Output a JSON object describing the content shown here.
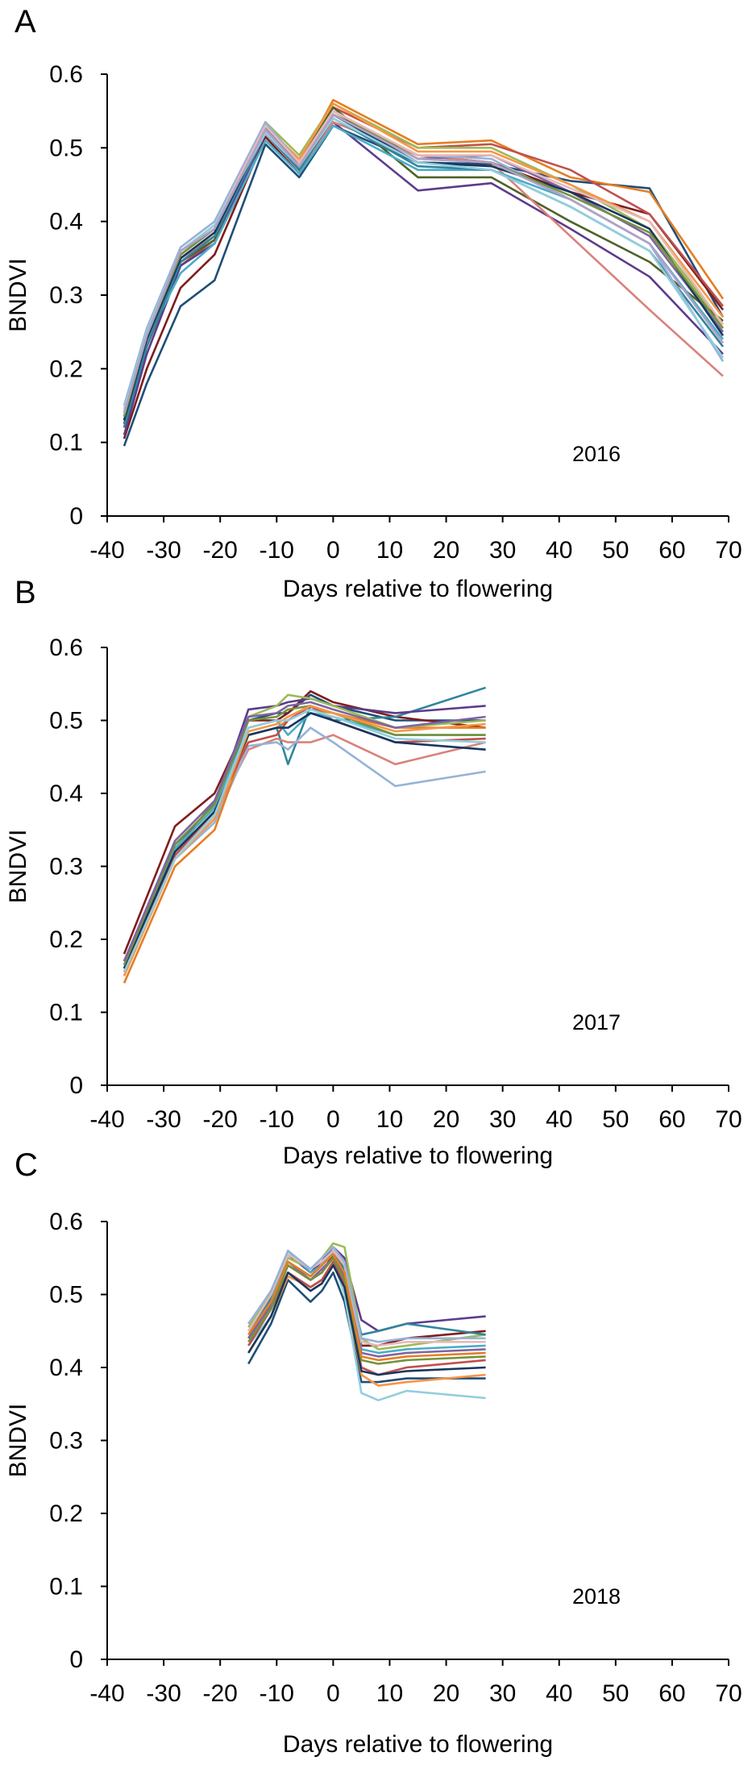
{
  "chart_data": [
    {
      "type": "line",
      "panel": "A",
      "year": "2016",
      "xlabel": "Days relative to flowering",
      "ylabel": "BNDVI",
      "xlim": [
        -40,
        70
      ],
      "ylim": [
        0,
        0.6
      ],
      "xticks": [
        "-40",
        "-30",
        "-20",
        "-10",
        "0",
        "10",
        "20",
        "30",
        "40",
        "50",
        "60",
        "70"
      ],
      "yticks": [
        "0",
        "0.1",
        "0.2",
        "0.3",
        "0.4",
        "0.5",
        "0.6"
      ],
      "x": [
        -37,
        -33,
        -27,
        -21,
        -12,
        -6,
        0,
        15,
        28,
        42,
        56,
        69
      ],
      "series": [
        {
          "color": "#1f4e79",
          "values": [
            0.095,
            0.18,
            0.285,
            0.32,
            0.505,
            0.46,
            0.53,
            0.48,
            0.478,
            0.455,
            0.445,
            0.27
          ]
        },
        {
          "color": "#7f1d1d",
          "values": [
            0.105,
            0.2,
            0.31,
            0.355,
            0.515,
            0.465,
            0.545,
            0.49,
            0.48,
            0.44,
            0.41,
            0.28
          ]
        },
        {
          "color": "#e67e22",
          "values": [
            0.14,
            0.23,
            0.345,
            0.38,
            0.535,
            0.48,
            0.565,
            0.505,
            0.51,
            0.46,
            0.44,
            0.295
          ]
        },
        {
          "color": "#c0504d",
          "values": [
            0.12,
            0.23,
            0.34,
            0.375,
            0.53,
            0.47,
            0.555,
            0.5,
            0.505,
            0.47,
            0.41,
            0.285
          ]
        },
        {
          "color": "#9bbb59",
          "values": [
            0.13,
            0.24,
            0.35,
            0.38,
            0.535,
            0.49,
            0.56,
            0.5,
            0.5,
            0.45,
            0.39,
            0.26
          ]
        },
        {
          "color": "#4f6228",
          "values": [
            0.125,
            0.235,
            0.345,
            0.375,
            0.525,
            0.48,
            0.555,
            0.46,
            0.46,
            0.4,
            0.345,
            0.265
          ]
        },
        {
          "color": "#5c3c8a",
          "values": [
            0.11,
            0.22,
            0.34,
            0.37,
            0.52,
            0.47,
            0.535,
            0.442,
            0.452,
            0.39,
            0.325,
            0.22
          ]
        },
        {
          "color": "#d9827b",
          "values": [
            0.13,
            0.235,
            0.35,
            0.38,
            0.52,
            0.47,
            0.535,
            0.49,
            0.48,
            0.38,
            0.28,
            0.19
          ]
        },
        {
          "color": "#4bacc6",
          "values": [
            0.135,
            0.24,
            0.33,
            0.37,
            0.51,
            0.465,
            0.53,
            0.47,
            0.47,
            0.43,
            0.37,
            0.24
          ]
        },
        {
          "color": "#8064a2",
          "values": [
            0.14,
            0.245,
            0.355,
            0.39,
            0.53,
            0.475,
            0.545,
            0.485,
            0.49,
            0.44,
            0.38,
            0.25
          ]
        },
        {
          "color": "#31859c",
          "values": [
            0.12,
            0.23,
            0.345,
            0.38,
            0.52,
            0.47,
            0.54,
            0.475,
            0.47,
            0.42,
            0.36,
            0.23
          ]
        },
        {
          "color": "#f79646",
          "values": [
            0.145,
            0.25,
            0.36,
            0.39,
            0.53,
            0.485,
            0.56,
            0.495,
            0.495,
            0.45,
            0.4,
            0.27
          ]
        },
        {
          "color": "#95b3d7",
          "values": [
            0.15,
            0.255,
            0.365,
            0.4,
            0.535,
            0.48,
            0.55,
            0.49,
            0.485,
            0.43,
            0.37,
            0.21
          ]
        },
        {
          "color": "#17375e",
          "values": [
            0.13,
            0.24,
            0.35,
            0.385,
            0.525,
            0.475,
            0.545,
            0.48,
            0.475,
            0.44,
            0.39,
            0.245
          ]
        },
        {
          "color": "#76923c",
          "values": [
            0.135,
            0.245,
            0.355,
            0.39,
            0.53,
            0.48,
            0.55,
            0.485,
            0.48,
            0.435,
            0.385,
            0.255
          ]
        },
        {
          "color": "#e6b9b8",
          "values": [
            0.14,
            0.25,
            0.36,
            0.395,
            0.53,
            0.48,
            0.55,
            0.49,
            0.49,
            0.445,
            0.4,
            0.26
          ]
        },
        {
          "color": "#93cddd",
          "values": [
            0.145,
            0.25,
            0.36,
            0.395,
            0.52,
            0.475,
            0.54,
            0.48,
            0.47,
            0.42,
            0.36,
            0.215
          ]
        },
        {
          "color": "#b1a0c7",
          "values": [
            0.14,
            0.245,
            0.36,
            0.39,
            0.525,
            0.475,
            0.545,
            0.485,
            0.48,
            0.43,
            0.37,
            0.235
          ]
        }
      ],
      "annotation": "2016"
    },
    {
      "type": "line",
      "panel": "B",
      "year": "2017",
      "xlabel": "Days relative to flowering",
      "ylabel": "BNDVI",
      "xlim": [
        -40,
        70
      ],
      "ylim": [
        0,
        0.6
      ],
      "xticks": [
        "-40",
        "-30",
        "-20",
        "-10",
        "0",
        "10",
        "20",
        "30",
        "40",
        "50",
        "60",
        "70"
      ],
      "yticks": [
        "0",
        "0.1",
        "0.2",
        "0.3",
        "0.4",
        "0.5",
        "0.6"
      ],
      "x": [
        -37,
        -28,
        -21,
        -15,
        -10,
        -8,
        -4,
        0,
        11,
        27
      ],
      "series": [
        {
          "color": "#1f4e79",
          "values": [
            0.16,
            0.33,
            0.38,
            0.5,
            0.51,
            0.51,
            0.535,
            0.52,
            0.5,
            0.5
          ]
        },
        {
          "color": "#7f1d1d",
          "values": [
            0.18,
            0.355,
            0.4,
            0.5,
            0.5,
            0.51,
            0.54,
            0.525,
            0.505,
            0.49
          ]
        },
        {
          "color": "#31859c",
          "values": [
            0.17,
            0.32,
            0.39,
            0.48,
            0.49,
            0.44,
            0.52,
            0.5,
            0.505,
            0.545
          ]
        },
        {
          "color": "#5c3c8a",
          "values": [
            0.17,
            0.33,
            0.38,
            0.515,
            0.52,
            0.525,
            0.53,
            0.52,
            0.51,
            0.52
          ]
        },
        {
          "color": "#d9827b",
          "values": [
            0.15,
            0.31,
            0.37,
            0.46,
            0.475,
            0.47,
            0.47,
            0.48,
            0.44,
            0.47
          ]
        },
        {
          "color": "#95b3d7",
          "values": [
            0.16,
            0.31,
            0.36,
            0.465,
            0.47,
            0.46,
            0.49,
            0.47,
            0.41,
            0.43
          ]
        },
        {
          "color": "#e67e22",
          "values": [
            0.14,
            0.3,
            0.35,
            0.48,
            0.49,
            0.5,
            0.515,
            0.51,
            0.49,
            0.49
          ]
        },
        {
          "color": "#9bbb59",
          "values": [
            0.16,
            0.32,
            0.385,
            0.505,
            0.52,
            0.535,
            0.53,
            0.52,
            0.49,
            0.5
          ]
        },
        {
          "color": "#c0504d",
          "values": [
            0.155,
            0.315,
            0.375,
            0.47,
            0.48,
            0.5,
            0.52,
            0.5,
            0.47,
            0.475
          ]
        },
        {
          "color": "#4bacc6",
          "values": [
            0.165,
            0.325,
            0.38,
            0.49,
            0.5,
            0.48,
            0.51,
            0.505,
            0.48,
            0.48
          ]
        },
        {
          "color": "#17375e",
          "values": [
            0.16,
            0.32,
            0.375,
            0.48,
            0.49,
            0.49,
            0.51,
            0.5,
            0.47,
            0.46
          ]
        },
        {
          "color": "#76923c",
          "values": [
            0.165,
            0.33,
            0.385,
            0.5,
            0.505,
            0.515,
            0.52,
            0.51,
            0.48,
            0.48
          ]
        },
        {
          "color": "#8064a2",
          "values": [
            0.17,
            0.335,
            0.39,
            0.505,
            0.51,
            0.52,
            0.525,
            0.515,
            0.49,
            0.505
          ]
        },
        {
          "color": "#f79646",
          "values": [
            0.15,
            0.31,
            0.365,
            0.485,
            0.495,
            0.505,
            0.52,
            0.51,
            0.485,
            0.495
          ]
        },
        {
          "color": "#93cddd",
          "values": [
            0.155,
            0.31,
            0.37,
            0.49,
            0.5,
            0.5,
            0.515,
            0.505,
            0.475,
            0.47
          ]
        }
      ],
      "annotation": "2017"
    },
    {
      "type": "line",
      "panel": "C",
      "year": "2018",
      "xlabel": "Days relative to flowering",
      "ylabel": "BNDVI",
      "xlim": [
        -40,
        70
      ],
      "ylim": [
        0,
        0.6
      ],
      "xticks": [
        "-40",
        "-30",
        "-20",
        "-10",
        "0",
        "10",
        "20",
        "30",
        "40",
        "50",
        "60",
        "70"
      ],
      "yticks": [
        "0",
        "0.1",
        "0.2",
        "0.3",
        "0.4",
        "0.5",
        "0.6"
      ],
      "x": [
        -15,
        -11,
        -8,
        -4,
        -2,
        0,
        2,
        5,
        8,
        13,
        27
      ],
      "series": [
        {
          "color": "#1f4e79",
          "values": [
            0.405,
            0.46,
            0.52,
            0.49,
            0.505,
            0.53,
            0.49,
            0.38,
            0.38,
            0.385,
            0.385
          ]
        },
        {
          "color": "#5c3c8a",
          "values": [
            0.46,
            0.5,
            0.555,
            0.53,
            0.545,
            0.565,
            0.55,
            0.465,
            0.45,
            0.46,
            0.47
          ]
        },
        {
          "color": "#93cddd",
          "values": [
            0.43,
            0.47,
            0.53,
            0.51,
            0.52,
            0.545,
            0.5,
            0.365,
            0.355,
            0.368,
            0.358
          ]
        },
        {
          "color": "#7f1d1d",
          "values": [
            0.44,
            0.49,
            0.54,
            0.52,
            0.53,
            0.555,
            0.53,
            0.43,
            0.43,
            0.44,
            0.45
          ]
        },
        {
          "color": "#9bbb59",
          "values": [
            0.455,
            0.505,
            0.55,
            0.535,
            0.55,
            0.57,
            0.565,
            0.44,
            0.425,
            0.43,
            0.445
          ]
        },
        {
          "color": "#31859c",
          "values": [
            0.45,
            0.495,
            0.545,
            0.525,
            0.54,
            0.56,
            0.535,
            0.445,
            0.45,
            0.46,
            0.445
          ]
        },
        {
          "color": "#f79646",
          "values": [
            0.42,
            0.47,
            0.525,
            0.51,
            0.52,
            0.54,
            0.51,
            0.39,
            0.375,
            0.38,
            0.39
          ]
        },
        {
          "color": "#c0504d",
          "values": [
            0.43,
            0.48,
            0.53,
            0.51,
            0.52,
            0.545,
            0.515,
            0.4,
            0.39,
            0.4,
            0.41
          ]
        },
        {
          "color": "#4bacc6",
          "values": [
            0.445,
            0.49,
            0.56,
            0.53,
            0.54,
            0.56,
            0.54,
            0.425,
            0.42,
            0.425,
            0.43
          ]
        },
        {
          "color": "#8064a2",
          "values": [
            0.44,
            0.485,
            0.545,
            0.52,
            0.535,
            0.55,
            0.525,
            0.42,
            0.415,
            0.42,
            0.425
          ]
        },
        {
          "color": "#76923c",
          "values": [
            0.435,
            0.48,
            0.54,
            0.52,
            0.53,
            0.55,
            0.52,
            0.41,
            0.405,
            0.41,
            0.415
          ]
        },
        {
          "color": "#e6b9b8",
          "values": [
            0.45,
            0.5,
            0.555,
            0.535,
            0.545,
            0.56,
            0.54,
            0.435,
            0.43,
            0.435,
            0.435
          ]
        },
        {
          "color": "#95b3d7",
          "values": [
            0.46,
            0.505,
            0.56,
            0.535,
            0.55,
            0.565,
            0.545,
            0.44,
            0.435,
            0.44,
            0.44
          ]
        },
        {
          "color": "#17375e",
          "values": [
            0.42,
            0.47,
            0.53,
            0.505,
            0.515,
            0.54,
            0.51,
            0.395,
            0.39,
            0.395,
            0.4
          ]
        },
        {
          "color": "#e67e22",
          "values": [
            0.445,
            0.49,
            0.545,
            0.525,
            0.54,
            0.555,
            0.53,
            0.415,
            0.41,
            0.415,
            0.42
          ]
        }
      ],
      "annotation": "2018"
    }
  ],
  "panels": [
    {
      "letter": "A"
    },
    {
      "letter": "B"
    },
    {
      "letter": "C"
    }
  ]
}
